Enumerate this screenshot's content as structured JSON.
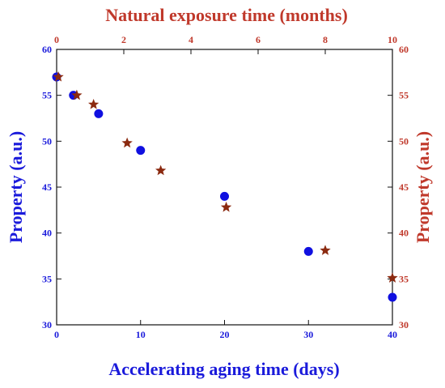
{
  "chart_data": {
    "type": "scatter",
    "title": "",
    "xlabel_bottom": "Accelerating aging time (days)",
    "xlabel_top": "Natural exposure time (months)",
    "ylabel_left": "Property (a.u.)",
    "ylabel_right": "Property (a.u.)",
    "xlim_bottom": [
      0,
      40
    ],
    "xlim_top": [
      0,
      10
    ],
    "ylim": [
      30,
      60
    ],
    "xticks_bottom": [
      0,
      10,
      20,
      30,
      40
    ],
    "xticks_top": [
      0,
      2,
      4,
      6,
      8,
      10
    ],
    "yticks": [
      30,
      35,
      40,
      45,
      50,
      55,
      60
    ],
    "grid": false,
    "legend": "none",
    "colors": {
      "bottom_axis": "#1a1adb",
      "top_axis": "#c0392b",
      "series_accelerated": "#1010e0",
      "series_natural": "#8b2a10"
    },
    "series": [
      {
        "marker": "circle",
        "x_axis": "bottom",
        "x": [
          0,
          2,
          5,
          10,
          20,
          30,
          40
        ],
        "y": [
          57,
          55,
          53,
          49,
          44,
          38,
          33
        ]
      },
      {
        "marker": "star",
        "x_axis": "top",
        "x": [
          0.05,
          0.6,
          1.1,
          2.1,
          3.1,
          5.05,
          8.0,
          10.0
        ],
        "y": [
          57,
          55,
          54,
          49.8,
          46.8,
          42.8,
          38.1,
          35.1
        ]
      }
    ]
  }
}
